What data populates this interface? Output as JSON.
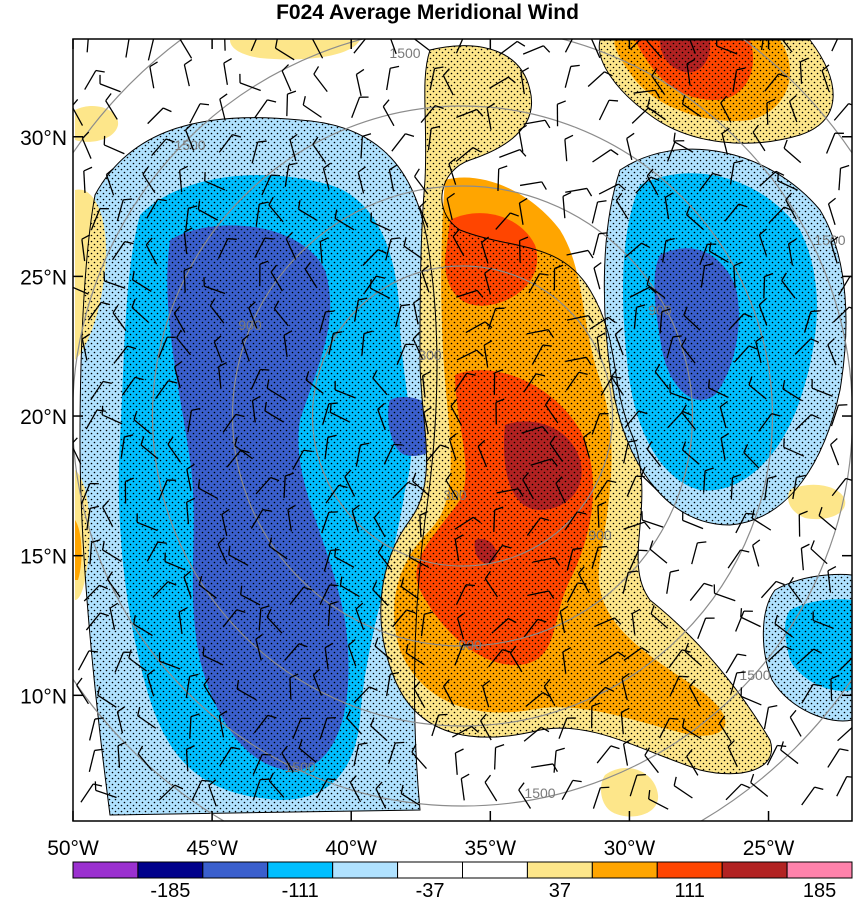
{
  "chart_data": {
    "type": "heatmap",
    "title": "F024 Average Meridional Wind",
    "y_ticks": [
      "30°N",
      "25°N",
      "20°N",
      "15°N",
      "10°N"
    ],
    "y_tick_values": [
      30,
      25,
      20,
      15,
      10
    ],
    "x_ticks": [
      "50°W",
      "45°W",
      "40°W",
      "35°W",
      "30°W",
      "25°W"
    ],
    "x_tick_values": [
      -50,
      -45,
      -40,
      -35,
      -30,
      -25
    ],
    "lon_range": [
      -50,
      -22
    ],
    "lat_range": [
      5.5,
      33.5
    ],
    "colorbar": {
      "bins": [
        "#9b30d0",
        "#00008b",
        "#3a5fcd",
        "#00bfff",
        "#b0e2ff",
        "#ffffff",
        "#ffffff",
        "#fde68a",
        "#ffa500",
        "#ff4500",
        "#b22222",
        "#ff82ab"
      ],
      "labels": [
        "-185",
        "-111",
        "-37",
        "37",
        "111",
        "185"
      ],
      "label_values": [
        -185,
        -111,
        -37,
        37,
        111,
        185
      ]
    },
    "range_ring_labels": [
      "300",
      "300",
      "900",
      "900",
      "900",
      "900",
      "1500",
      "1500",
      "1500",
      "1500",
      "1500",
      "1500"
    ],
    "features": [
      {
        "name": "negative-band-west",
        "sign": "negative",
        "lon": [
          -49,
          -40
        ],
        "lat": [
          7,
          31
        ]
      },
      {
        "name": "positive-band-central",
        "sign": "positive",
        "lon": [
          -38,
          -27
        ],
        "lat": [
          7,
          29
        ]
      },
      {
        "name": "negative-cell-east",
        "sign": "negative",
        "lon": [
          -29,
          -23
        ],
        "lat": [
          16,
          28
        ]
      },
      {
        "name": "positive-cell-northeast",
        "sign": "positive",
        "lon": [
          -30,
          -24
        ],
        "lat": [
          29,
          33.5
        ]
      },
      {
        "name": "negative-cell-southeast",
        "sign": "negative",
        "lon": [
          -24,
          -22
        ],
        "lat": [
          9,
          14
        ]
      }
    ]
  }
}
